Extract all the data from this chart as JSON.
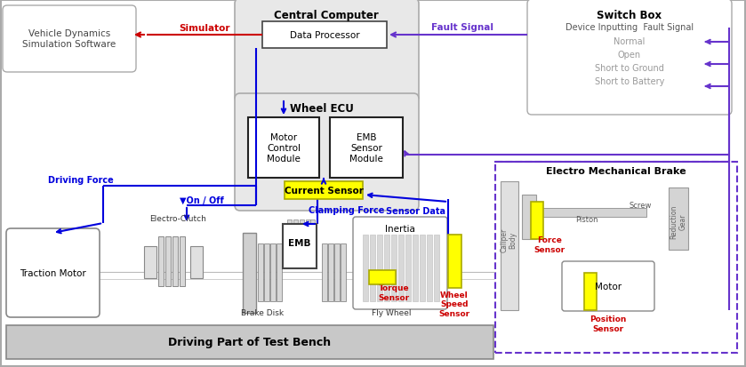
{
  "blue": "#0000dd",
  "purple": "#6633cc",
  "red": "#cc0000",
  "yellow": "#ffff00",
  "gray_fill": "#c8c8c8",
  "light_gray": "#e8e8e8",
  "mid_gray": "#d0d0d0",
  "dark_gray": "#888888",
  "title_central": "Central Computer",
  "title_vehicle": "Vehicle Dynamics\nSimulation Software",
  "title_switch": "Switch Box",
  "title_switch_sub": "Device Inputting  Fault Signal",
  "switch_items": [
    "Normal",
    "Open",
    "Short to Ground",
    "Short to Battery"
  ],
  "title_wheel_ecu": "Wheel ECU",
  "title_motor": "Motor\nControl\nModule",
  "title_emb_sensor": "EMB\nSensor\nModule",
  "title_data_proc": "Data Processor",
  "title_current": "Current Sensor",
  "title_emb_brake": "Electro Mechanical Brake",
  "title_traction": "Traction Motor",
  "title_emb": "EMB",
  "title_brake_disk": "Brake Disk",
  "title_fly_wheel": "Fly Wheel",
  "title_inertia": "Inertia",
  "title_driving_part": "Driving Part of Test Bench",
  "title_electro_clutch": "Electro-Clutch",
  "label_simulator": "Simulator",
  "label_fault": "Fault Signal",
  "label_driving_force": "Driving Force",
  "label_on_off": "▼On / Off",
  "label_clamping": "Clamping Force",
  "label_sensor_data": "Sensor Data",
  "label_torque": "Torque\nSensor",
  "label_wheel_speed": "Wheel\nSpeed\nSensor",
  "label_force_sensor": "Force\nSensor",
  "label_position_sensor": "Position\nSensor",
  "label_piston": "Piston",
  "label_screw": "Screw",
  "label_motor": "Motor",
  "label_caliper": "Caliper\nBody",
  "label_reduction": "Reduction\nGear"
}
